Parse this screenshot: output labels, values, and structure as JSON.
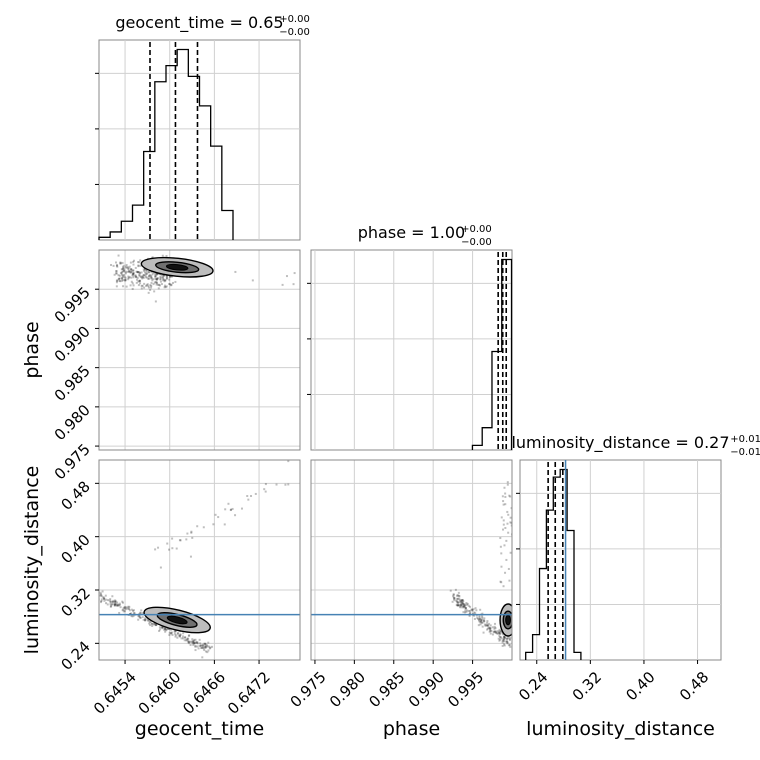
{
  "chart_data": {
    "type": "corner",
    "parameters": [
      "geocent_time",
      "phase",
      "luminosity_distance"
    ],
    "titles": [
      {
        "param": "geocent_time",
        "text": "geocent_time = 0.65",
        "sup": "+0.00",
        "sub": "−0.00"
      },
      {
        "param": "phase",
        "text": "phase = 1.00",
        "sup": "+0.00",
        "sub": "−0.00"
      },
      {
        "param": "luminosity_distance",
        "text": "luminosity_distance = 0.27",
        "sup": "+0.01",
        "sub": "−0.01"
      }
    ],
    "axis_labels": {
      "x": [
        "geocent_time",
        "phase",
        "luminosity_distance"
      ],
      "y": [
        "phase",
        "luminosity_distance"
      ]
    },
    "ranges": {
      "geocent_time": [
        0.64505,
        0.64775
      ],
      "phase": [
        0.9745,
        1.0
      ],
      "luminosity_distance": [
        0.215,
        0.515
      ]
    },
    "ticks": {
      "geocent_time": [
        "0.6454",
        "0.6460",
        "0.6466",
        "0.6472"
      ],
      "phase": [
        "0.975",
        "0.980",
        "0.985",
        "0.990",
        "0.995"
      ],
      "luminosity_distance": [
        "0.24",
        "0.32",
        "0.40",
        "0.48"
      ]
    },
    "histograms": {
      "geocent_time": {
        "edges": [
          0.64505,
          0.6452,
          0.64535,
          0.6455,
          0.64565,
          0.6458,
          0.64595,
          0.6461,
          0.64625,
          0.6464,
          0.64655,
          0.6467,
          0.64685
        ],
        "values": [
          1,
          3,
          7,
          13,
          33,
          59,
          65,
          71,
          61,
          50,
          35,
          11
        ],
        "quantiles": [
          0.645735,
          0.646077,
          0.646373
        ]
      },
      "phase": {
        "edges": [
          0.99498,
          0.99622,
          0.99746,
          0.9987,
          0.99994
        ],
        "values": [
          10,
          48,
          212,
          410
        ],
        "quantiles": [
          0.998246,
          0.998828,
          0.999267
        ]
      },
      "luminosity_distance": {
        "edges": [
          0.2235,
          0.2338,
          0.2441,
          0.2544,
          0.2647,
          0.275,
          0.2853,
          0.2956,
          0.3059
        ],
        "values": [
          3,
          10,
          36,
          59,
          72,
          75,
          51,
          3
        ],
        "quantiles": [
          0.257,
          0.2676,
          0.2789
        ]
      }
    },
    "truth": {
      "luminosity_distance": 0.283
    },
    "grid": true
  }
}
